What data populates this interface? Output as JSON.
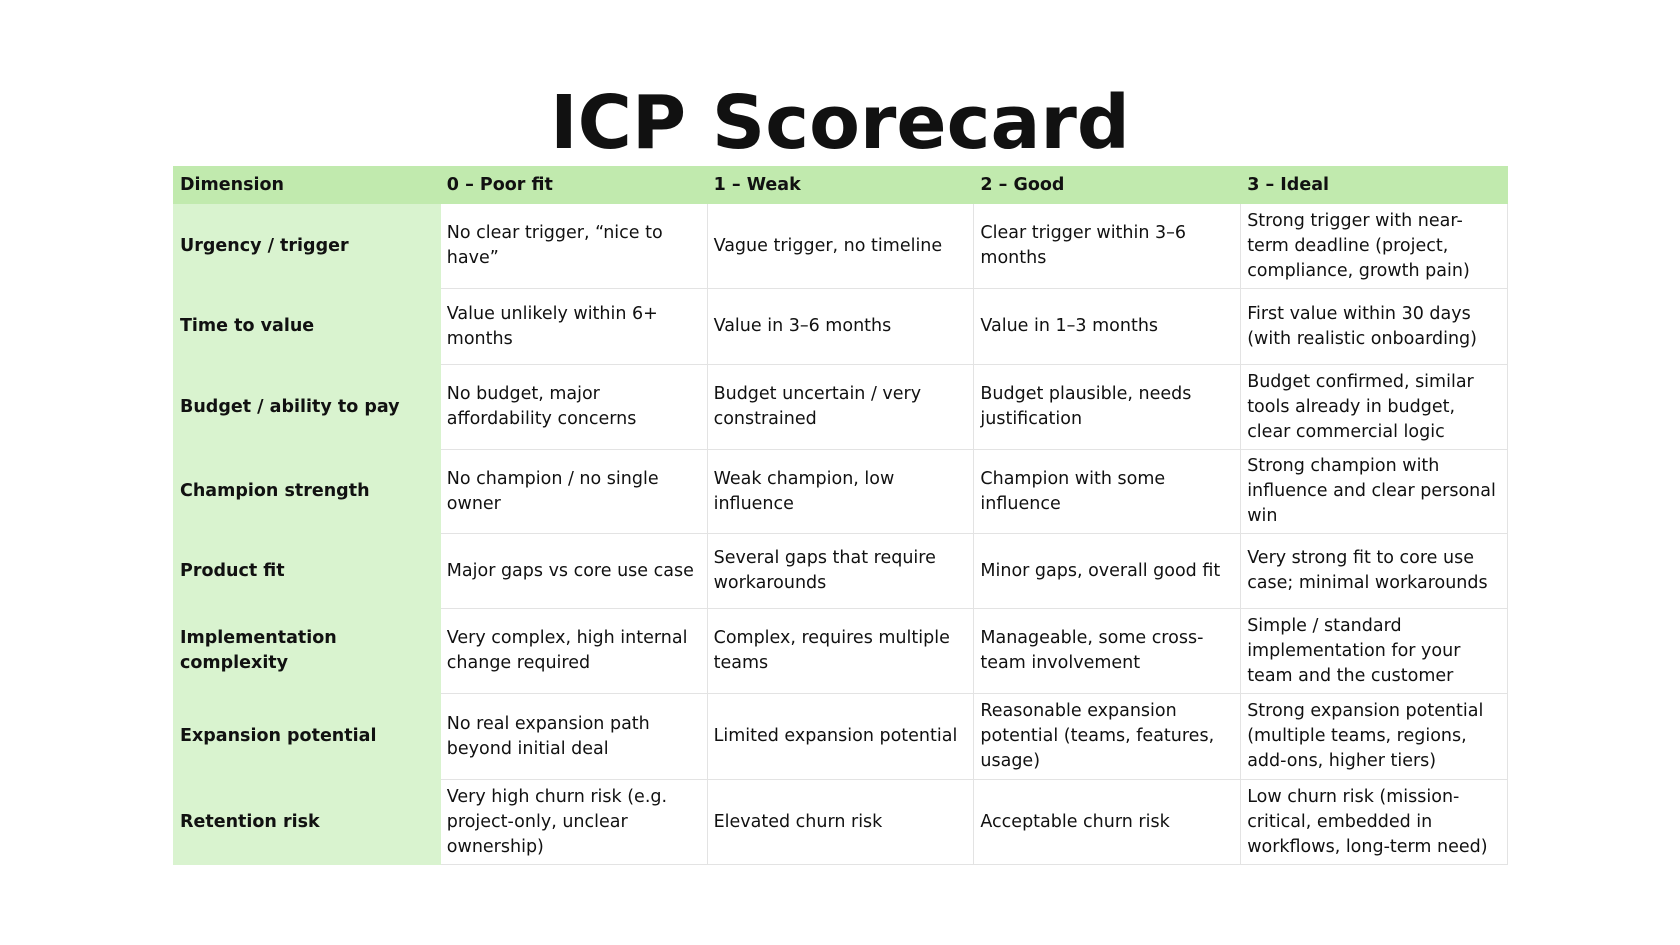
{
  "title": "ICP Scorecard",
  "colors": {
    "header_bg": "#c1eaae",
    "dimension_bg": "#d9f3cf"
  },
  "table": {
    "headers": [
      "Dimension",
      "0 – Poor fit",
      "1 – Weak",
      "2 – Good",
      "3 – Ideal"
    ],
    "rows": [
      [
        "Urgency / trigger",
        "No clear trigger, “nice to have”",
        "Vague trigger, no timeline",
        "Clear trigger within 3–6 months",
        "Strong trigger with near-term deadline (project, compliance, growth pain)"
      ],
      [
        "Time to value",
        "Value unlikely within 6+ months",
        "Value in 3–6 months",
        "Value in 1–3 months",
        "First value within 30 days (with realistic onboarding)"
      ],
      [
        "Budget / ability to pay",
        "No budget, major affordability concerns",
        "Budget uncertain / very constrained",
        "Budget plausible, needs justification",
        "Budget confirmed, similar tools already in budget, clear commercial logic"
      ],
      [
        "Champion strength",
        "No champion / no single owner",
        "Weak champion, low influence",
        "Champion with some influence",
        "Strong champion with influence and clear personal win"
      ],
      [
        "Product fit",
        "Major gaps vs core use case",
        "Several gaps that require workarounds",
        "Minor gaps, overall good fit",
        "Very strong fit to core use case; minimal workarounds"
      ],
      [
        "Implementation complexity",
        "Very complex, high internal change required",
        "Complex, requires multiple teams",
        "Manageable, some cross-team involvement",
        "Simple / standard implementation for your team and the customer"
      ],
      [
        "Expansion potential",
        "No real expansion path beyond initial deal",
        "Limited expansion potential",
        "Reasonable expansion potential (teams, features, usage)",
        "Strong expansion potential (multiple teams, regions, add-ons, higher tiers)"
      ],
      [
        "Retention risk",
        "Very high churn risk (e.g. project-only, unclear ownership)",
        "Elevated churn risk",
        "Acceptable churn risk",
        "Low churn risk (mission-critical, embedded in workflows, long-term need)"
      ]
    ]
  }
}
